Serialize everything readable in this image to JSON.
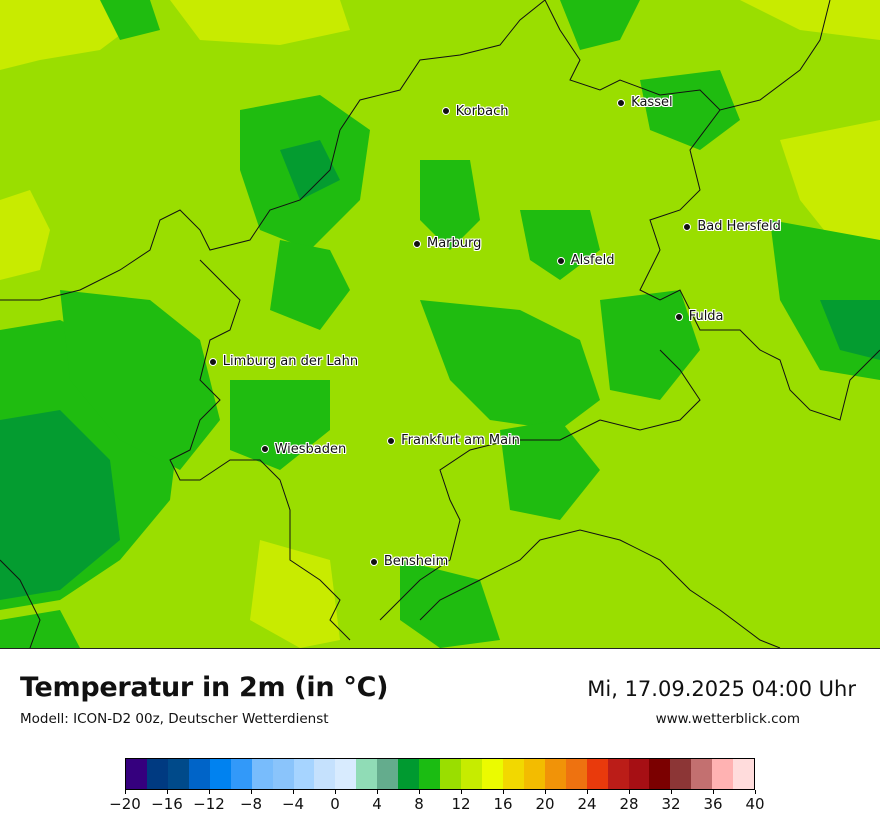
{
  "map": {
    "cities": [
      {
        "name": "Kassel",
        "lon": 9.48,
        "lat": 51.31
      },
      {
        "name": "Korbach",
        "lon": 8.87,
        "lat": 51.28
      },
      {
        "name": "Bad Hersfeld",
        "lon": 9.71,
        "lat": 50.87
      },
      {
        "name": "Marburg",
        "lon": 8.77,
        "lat": 50.81
      },
      {
        "name": "Alsfeld",
        "lon": 9.27,
        "lat": 50.75
      },
      {
        "name": "Fulda",
        "lon": 9.68,
        "lat": 50.55
      },
      {
        "name": "Limburg an der Lahn",
        "lon": 8.06,
        "lat": 50.39
      },
      {
        "name": "Frankfurt am Main",
        "lon": 8.68,
        "lat": 50.11
      },
      {
        "name": "Wiesbaden",
        "lon": 8.24,
        "lat": 50.08
      },
      {
        "name": "Bensheim",
        "lon": 8.62,
        "lat": 49.68
      }
    ],
    "colors": {
      "warmer": "#9ade00",
      "cooler": "#1fbc10",
      "coolest": "#049c30",
      "warmest": "#c8eb00"
    }
  },
  "header": {
    "title": "Temperatur in 2m (in °C)",
    "model": "Modell: ICON-D2 00z, Deutscher Wetterdienst",
    "datetime": "Mi, 17.09.2025 04:00 Uhr",
    "website": "www.wetterblick.com"
  },
  "legend": {
    "unit": "°C",
    "colors": [
      "#35007e",
      "#003a81",
      "#004a8a",
      "#0064c8",
      "#0082f0",
      "#3299f9",
      "#78bcfc",
      "#8ac4fb",
      "#a6d4ff",
      "#c5e1fd",
      "#d8ebfe",
      "#90dcb6",
      "#64ac8d",
      "#009a30",
      "#1bbc12",
      "#9ade00",
      "#c6ec00",
      "#ebfb00",
      "#f2d800",
      "#f3bc00",
      "#f19308",
      "#ee7210",
      "#e93a0c",
      "#bb1d18",
      "#a60f14",
      "#7b0000",
      "#8c3636",
      "#c37070",
      "#ffb2b2",
      "#ffdcdc"
    ],
    "tick_values": [
      -20,
      -16,
      -12,
      -8,
      -4,
      0,
      4,
      8,
      12,
      16,
      20,
      24,
      28,
      32,
      36,
      40
    ],
    "tick_labels": [
      "−20",
      "−16",
      "−12",
      "−8",
      "−4",
      "0",
      "4",
      "8",
      "12",
      "16",
      "20",
      "24",
      "28",
      "32",
      "36",
      "40"
    ]
  }
}
